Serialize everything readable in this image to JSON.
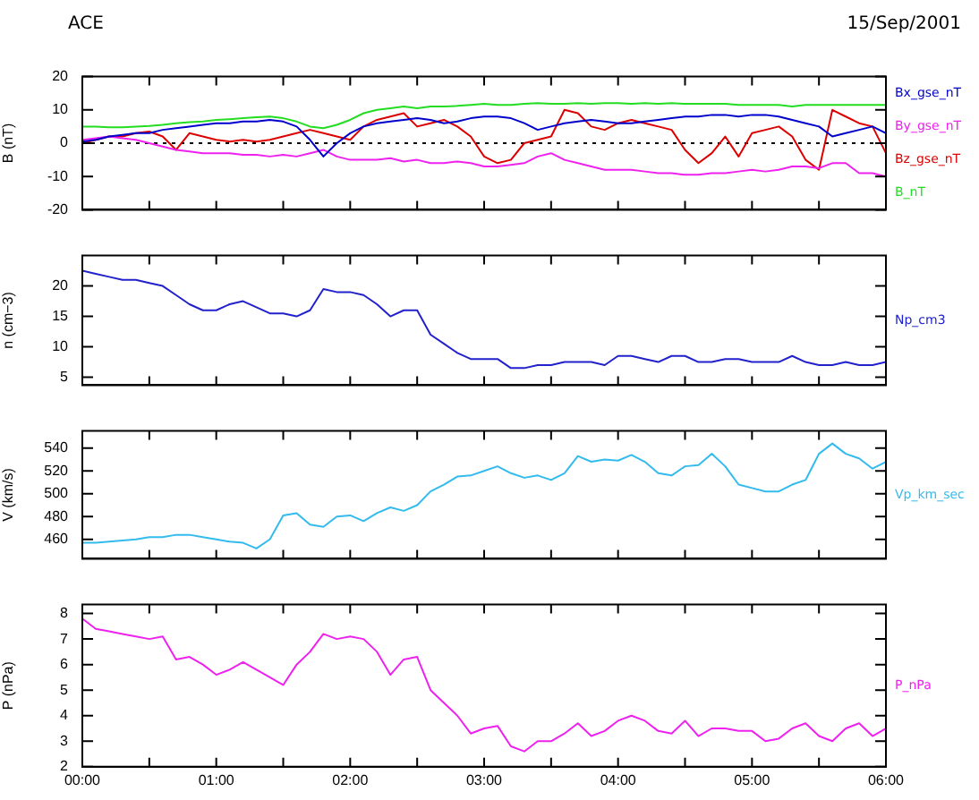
{
  "chart_data": [
    {
      "type": "line",
      "title": "ACE",
      "subtitle": "15/Sep/2001",
      "ylabel": "B (nT)",
      "legend": "right",
      "grid": false,
      "tick_labels": "y",
      "marker": "none",
      "line_style": "solid",
      "x": [
        0,
        0.1,
        0.2,
        0.3,
        0.4,
        0.5,
        0.6,
        0.7,
        0.8,
        0.9,
        1,
        1.1,
        1.2,
        1.3,
        1.4,
        1.5,
        1.6,
        1.7,
        1.8,
        1.9,
        2,
        2.1,
        2.2,
        2.3,
        2.4,
        2.5,
        2.6,
        2.7,
        2.8,
        2.9,
        3,
        3.1,
        3.2,
        3.3,
        3.4,
        3.5,
        3.6,
        3.7,
        3.8,
        3.9,
        4,
        4.1,
        4.2,
        4.3,
        4.4,
        4.5,
        4.6,
        4.7,
        4.8,
        4.9,
        5,
        5.1,
        5.2,
        5.3,
        5.4,
        5.5,
        5.6,
        5.7,
        5.8,
        5.9,
        6
      ],
      "xlim": [
        0,
        6
      ],
      "xticks": [
        {
          "value": 0,
          "label": null
        },
        {
          "value": 0.5,
          "label": null
        },
        {
          "value": 1,
          "label": null
        },
        {
          "value": 1.5,
          "label": null
        },
        {
          "value": 2,
          "label": null
        },
        {
          "value": 2.5,
          "label": null
        },
        {
          "value": 3,
          "label": null
        },
        {
          "value": 3.5,
          "label": null
        },
        {
          "value": 4,
          "label": null
        },
        {
          "value": 4.5,
          "label": null
        },
        {
          "value": 5,
          "label": null
        },
        {
          "value": 5.5,
          "label": null
        },
        {
          "value": 6,
          "label": null
        }
      ],
      "ylim": [
        -20,
        20
      ],
      "yticks": [
        -20,
        -10,
        0,
        10,
        20
      ],
      "ref_lines": [
        {
          "axis": "y",
          "value": 0,
          "color": "#000000",
          "line_style": "dotted"
        }
      ],
      "series": [
        {
          "name": "Bx_gse_nT",
          "color": "#0000cc",
          "values": [
            0.5,
            1,
            2,
            2.5,
            3,
            3,
            4,
            4.5,
            5,
            5.5,
            6,
            6,
            6.5,
            6.5,
            7,
            6.5,
            5,
            1,
            -4,
            0,
            3,
            5,
            6,
            6.5,
            7,
            7.5,
            7,
            6,
            6.5,
            7.5,
            8,
            8,
            7.5,
            6,
            4,
            5,
            6,
            6.5,
            7,
            6.5,
            6,
            6,
            6.5,
            7,
            7.5,
            8,
            8,
            8.5,
            8.5,
            8,
            8.5,
            8.5,
            8,
            7,
            6,
            5,
            2,
            3,
            4,
            5,
            3
          ]
        },
        {
          "name": "By_gse_nT",
          "color": "#ee22ee",
          "values": [
            1,
            1.5,
            2,
            1.5,
            1,
            0,
            -1,
            -2,
            -2.5,
            -3,
            -3,
            -3,
            -3.5,
            -3.5,
            -4,
            -3.5,
            -4,
            -3,
            -2,
            -4,
            -5,
            -5,
            -5,
            -4.5,
            -5.5,
            -5,
            -6,
            -6,
            -5.5,
            -6,
            -7,
            -7,
            -6.5,
            -6,
            -4,
            -3,
            -5,
            -6,
            -7,
            -8,
            -8,
            -8,
            -8.5,
            -9,
            -9,
            -9.5,
            -9.5,
            -9,
            -9,
            -8.5,
            -8,
            -8.5,
            -8,
            -7,
            -7,
            -7.5,
            -6,
            -6,
            -9,
            -9,
            -10
          ]
        },
        {
          "name": "Bz_gse_nT",
          "color": "#dd0000",
          "values": [
            0,
            1,
            2,
            2,
            3,
            3.5,
            2,
            -2,
            3,
            2,
            1,
            0.5,
            1,
            0.5,
            1,
            2,
            3,
            4,
            3,
            2,
            1,
            5,
            7,
            8,
            9,
            5,
            6,
            7,
            5,
            2,
            -4,
            -6,
            -5,
            0,
            1,
            2,
            10,
            9,
            5,
            4,
            6,
            7,
            6,
            5,
            4,
            -2,
            -6,
            -3,
            2,
            -4,
            3,
            4,
            5,
            2,
            -5,
            -8,
            10,
            8,
            6,
            5,
            -3
          ]
        },
        {
          "name": "B_nT",
          "color": "#22dd22",
          "values": [
            5,
            5,
            4.8,
            4.8,
            5,
            5.2,
            5.5,
            6,
            6.3,
            6.5,
            7,
            7.2,
            7.5,
            7.8,
            8,
            7.5,
            6.5,
            5,
            4.5,
            5.5,
            7,
            9,
            10,
            10.5,
            11,
            10.5,
            11,
            11,
            11.2,
            11.5,
            11.8,
            11.5,
            11.5,
            11.8,
            12,
            11.8,
            11.8,
            12,
            11.8,
            12,
            12,
            11.8,
            12,
            11.8,
            12,
            11.8,
            11.8,
            11.8,
            11.8,
            11.5,
            11.5,
            11.5,
            11.5,
            11,
            11.5,
            11.5,
            11.5,
            11.5,
            11.5,
            11.5,
            11.5
          ]
        }
      ]
    },
    {
      "type": "line",
      "ylabel": "n (cm−3)",
      "legend": "right",
      "grid": false,
      "tick_labels": "y",
      "marker": "none",
      "line_style": "solid",
      "x": [
        0,
        0.1,
        0.2,
        0.3,
        0.4,
        0.5,
        0.6,
        0.7,
        0.8,
        0.9,
        1,
        1.1,
        1.2,
        1.3,
        1.4,
        1.5,
        1.6,
        1.7,
        1.8,
        1.9,
        2,
        2.1,
        2.2,
        2.3,
        2.4,
        2.5,
        2.6,
        2.7,
        2.8,
        2.9,
        3,
        3.1,
        3.2,
        3.3,
        3.4,
        3.5,
        3.6,
        3.7,
        3.8,
        3.9,
        4,
        4.1,
        4.2,
        4.3,
        4.4,
        4.5,
        4.6,
        4.7,
        4.8,
        4.9,
        5,
        5.1,
        5.2,
        5.3,
        5.4,
        5.5,
        5.6,
        5.7,
        5.8,
        5.9,
        6
      ],
      "xlim": [
        0,
        6
      ],
      "xticks": [
        {
          "value": 0,
          "label": null
        },
        {
          "value": 0.5,
          "label": null
        },
        {
          "value": 1,
          "label": null
        },
        {
          "value": 1.5,
          "label": null
        },
        {
          "value": 2,
          "label": null
        },
        {
          "value": 2.5,
          "label": null
        },
        {
          "value": 3,
          "label": null
        },
        {
          "value": 3.5,
          "label": null
        },
        {
          "value": 4,
          "label": null
        },
        {
          "value": 4.5,
          "label": null
        },
        {
          "value": 5,
          "label": null
        },
        {
          "value": 5.5,
          "label": null
        },
        {
          "value": 6,
          "label": null
        }
      ],
      "ylim": [
        3.7,
        25
      ],
      "yticks": [
        5,
        10,
        15,
        20
      ],
      "series": [
        {
          "name": "Np_cm3",
          "color": "#2222cc",
          "values": [
            22.5,
            22,
            21.5,
            21,
            21,
            20.5,
            20,
            18.5,
            17,
            16,
            16,
            17,
            17.5,
            16.5,
            15.5,
            15.5,
            15,
            16,
            19.5,
            19,
            19,
            18.5,
            17,
            15,
            16,
            16,
            12,
            10.5,
            9,
            8,
            8,
            8,
            6.5,
            6.5,
            7,
            7,
            7.5,
            7.5,
            7.5,
            7,
            8.5,
            8.5,
            8,
            7.5,
            8.5,
            8.5,
            7.5,
            7.5,
            8,
            8,
            7.5,
            7.5,
            7.5,
            8.5,
            7.5,
            7,
            7,
            7.5,
            7,
            7,
            7.5
          ]
        }
      ]
    },
    {
      "type": "line",
      "ylabel": "V (km/s)",
      "legend": "right",
      "grid": false,
      "tick_labels": "y",
      "marker": "none",
      "line_style": "solid",
      "x": [
        0,
        0.1,
        0.2,
        0.3,
        0.4,
        0.5,
        0.6,
        0.7,
        0.8,
        0.9,
        1,
        1.1,
        1.2,
        1.3,
        1.4,
        1.5,
        1.6,
        1.7,
        1.8,
        1.9,
        2,
        2.1,
        2.2,
        2.3,
        2.4,
        2.5,
        2.6,
        2.7,
        2.8,
        2.9,
        3,
        3.1,
        3.2,
        3.3,
        3.4,
        3.5,
        3.6,
        3.7,
        3.8,
        3.9,
        4,
        4.1,
        4.2,
        4.3,
        4.4,
        4.5,
        4.6,
        4.7,
        4.8,
        4.9,
        5,
        5.1,
        5.2,
        5.3,
        5.4,
        5.5,
        5.6,
        5.7,
        5.8,
        5.9,
        6
      ],
      "xlim": [
        0,
        6
      ],
      "xticks": [
        {
          "value": 0,
          "label": null
        },
        {
          "value": 0.5,
          "label": null
        },
        {
          "value": 1,
          "label": null
        },
        {
          "value": 1.5,
          "label": null
        },
        {
          "value": 2,
          "label": null
        },
        {
          "value": 2.5,
          "label": null
        },
        {
          "value": 3,
          "label": null
        },
        {
          "value": 3.5,
          "label": null
        },
        {
          "value": 4,
          "label": null
        },
        {
          "value": 4.5,
          "label": null
        },
        {
          "value": 5,
          "label": null
        },
        {
          "value": 5.5,
          "label": null
        },
        {
          "value": 6,
          "label": null
        }
      ],
      "ylim": [
        443,
        555
      ],
      "yticks": [
        460,
        480,
        500,
        520,
        540
      ],
      "series": [
        {
          "name": "Vp_km_sec",
          "color": "#33bbee",
          "values": [
            457,
            457,
            458,
            459,
            460,
            462,
            462,
            464,
            464,
            462,
            460,
            458,
            457,
            452,
            460,
            481,
            483,
            473,
            471,
            480,
            481,
            476,
            483,
            488,
            485,
            490,
            502,
            508,
            515,
            516,
            520,
            524,
            518,
            514,
            516,
            512,
            518,
            533,
            528,
            530,
            529,
            534,
            528,
            518,
            516,
            524,
            525,
            535,
            524,
            508,
            505,
            502,
            502,
            508,
            512,
            535,
            544,
            535,
            531,
            522,
            528
          ]
        }
      ]
    },
    {
      "type": "line",
      "ylabel": "P (nPa)",
      "legend": "right",
      "grid": false,
      "marker": "none",
      "line_style": "solid",
      "x": [
        0,
        0.1,
        0.2,
        0.3,
        0.4,
        0.5,
        0.6,
        0.7,
        0.8,
        0.9,
        1,
        1.1,
        1.2,
        1.3,
        1.4,
        1.5,
        1.6,
        1.7,
        1.8,
        1.9,
        2,
        2.1,
        2.2,
        2.3,
        2.4,
        2.5,
        2.6,
        2.7,
        2.8,
        2.9,
        3,
        3.1,
        3.2,
        3.3,
        3.4,
        3.5,
        3.6,
        3.7,
        3.8,
        3.9,
        4,
        4.1,
        4.2,
        4.3,
        4.4,
        4.5,
        4.6,
        4.7,
        4.8,
        4.9,
        5,
        5.1,
        5.2,
        5.3,
        5.4,
        5.5,
        5.6,
        5.7,
        5.8,
        5.9,
        6
      ],
      "xlim": [
        0,
        6
      ],
      "xticks": [
        {
          "value": 0,
          "label": "00:00"
        },
        {
          "value": 0.5,
          "label": null
        },
        {
          "value": 1,
          "label": "01:00"
        },
        {
          "value": 1.5,
          "label": null
        },
        {
          "value": 2,
          "label": "02:00"
        },
        {
          "value": 2.5,
          "label": null
        },
        {
          "value": 3,
          "label": "03:00"
        },
        {
          "value": 3.5,
          "label": null
        },
        {
          "value": 4,
          "label": "04:00"
        },
        {
          "value": 4.5,
          "label": null
        },
        {
          "value": 5,
          "label": "05:00"
        },
        {
          "value": 5.5,
          "label": null
        },
        {
          "value": 6,
          "label": "06:00"
        }
      ],
      "ylim": [
        2,
        8.35
      ],
      "yticks": [
        2,
        3,
        4,
        5,
        6,
        7,
        8
      ],
      "series": [
        {
          "name": "P_nPa",
          "color": "#ee22ee",
          "values": [
            7.8,
            7.4,
            7.3,
            7.2,
            7.1,
            7,
            7.1,
            6.2,
            6.3,
            6,
            5.6,
            5.8,
            6.1,
            5.8,
            5.5,
            5.2,
            6,
            6.5,
            7.2,
            7,
            7.1,
            7,
            6.5,
            5.6,
            6.2,
            6.3,
            5,
            4.5,
            4,
            3.3,
            3.5,
            3.6,
            2.8,
            2.6,
            3,
            3,
            3.3,
            3.7,
            3.2,
            3.4,
            3.8,
            4,
            3.8,
            3.4,
            3.3,
            3.8,
            3.2,
            3.5,
            3.5,
            3.4,
            3.4,
            3,
            3.1,
            3.5,
            3.7,
            3.2,
            3,
            3.5,
            3.7,
            3.2,
            3.5
          ]
        }
      ]
    }
  ]
}
